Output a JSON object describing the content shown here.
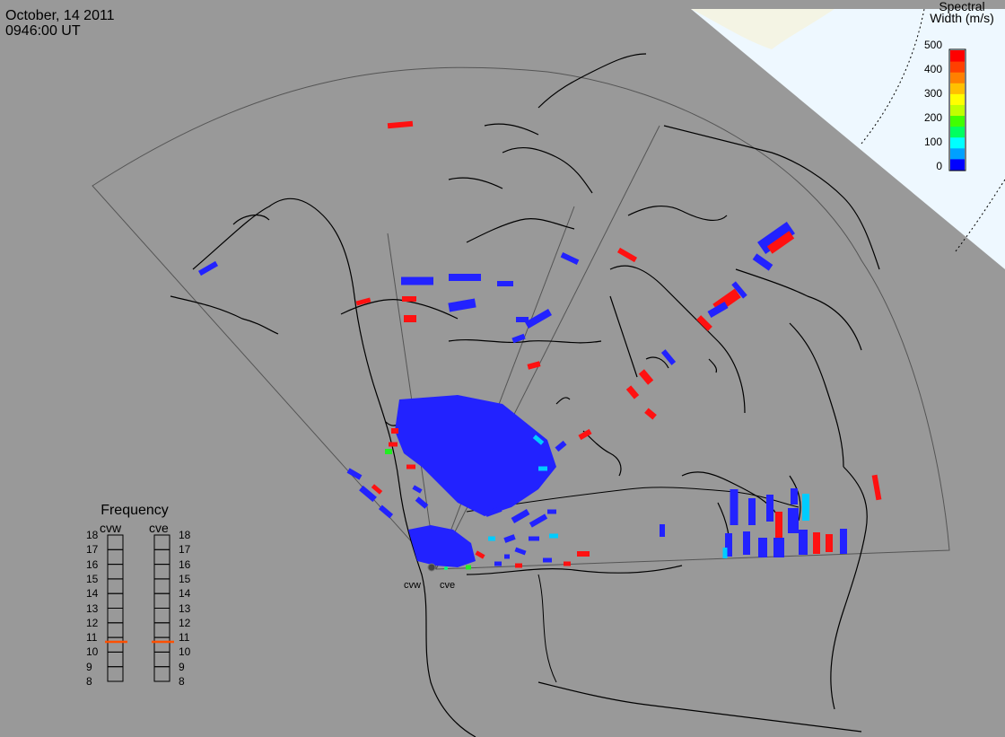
{
  "header": {
    "date": "October, 14 2011",
    "time": "0946:00 UT"
  },
  "colorbar": {
    "title_line1": "Spectral",
    "title_line2": "Width (m/s)",
    "ticks": [
      "500",
      "400",
      "300",
      "200",
      "100",
      "0"
    ],
    "colors": [
      "#0000ff",
      "#00a0ff",
      "#00ffff",
      "#00ff60",
      "#40ff00",
      "#c0ff00",
      "#ffff00",
      "#ffc000",
      "#ff8000",
      "#ff4000",
      "#ff0000"
    ]
  },
  "frequency_panel": {
    "title": "Frequency",
    "radars": [
      {
        "name": "cvw",
        "frequency": 10.7
      },
      {
        "name": "cve",
        "frequency": 10.7
      }
    ],
    "ticks": [
      "18",
      "17",
      "16",
      "15",
      "14",
      "13",
      "12",
      "11",
      "10",
      "9",
      "8"
    ],
    "marker_color": "#ff5000"
  },
  "radar_sites": [
    "cvw",
    "cve"
  ],
  "colors": {
    "land_background": "#999999",
    "blue": "#2222ff",
    "red": "#ff1111",
    "cyan": "#00ccff",
    "green": "#22ee22"
  }
}
